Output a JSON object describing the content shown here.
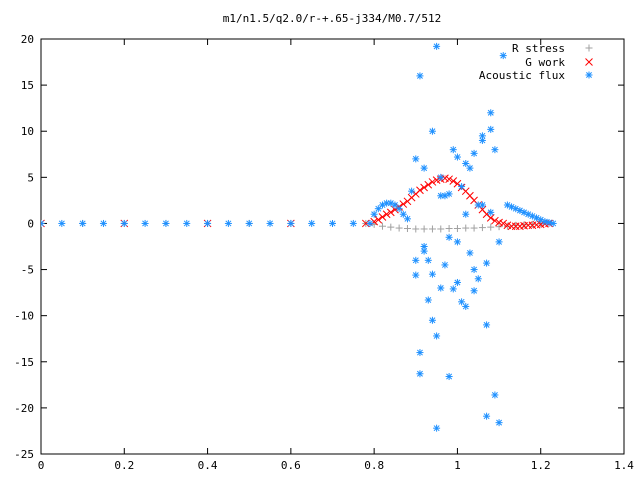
{
  "chart_data": {
    "type": "scatter",
    "title": "m1/n1.5/q2.0/r-+.65-j334/M0.7/512",
    "xlim": [
      0,
      1.4
    ],
    "ylim": [
      -25,
      20
    ],
    "x_ticks": [
      "0",
      "0.2",
      "0.4",
      "0.6",
      "0.8",
      "1",
      "1.2",
      "1.4"
    ],
    "y_ticks": [
      "20",
      "15",
      "10",
      "5",
      "0",
      "-5",
      "-10",
      "-15",
      "-20",
      "-25"
    ],
    "x_tick_values": [
      0,
      0.2,
      0.4,
      0.6,
      0.8,
      1.0,
      1.2,
      1.4
    ],
    "y_tick_values": [
      20,
      15,
      10,
      5,
      0,
      -5,
      -10,
      -15,
      -20,
      -25
    ],
    "grid": false,
    "legend_position": "top-right",
    "series": [
      {
        "name": "R stress",
        "marker": "+",
        "color": "#a0a0a0",
        "x": [
          0.0,
          0.1,
          0.2,
          0.3,
          0.4,
          0.5,
          0.6,
          0.7,
          0.78,
          0.8,
          0.82,
          0.84,
          0.86,
          0.88,
          0.9,
          0.92,
          0.94,
          0.96,
          0.98,
          1.0,
          1.02,
          1.04,
          1.06,
          1.08,
          1.1,
          1.12,
          1.14,
          1.16,
          1.18,
          1.2,
          1.22
        ],
        "y": [
          0,
          0,
          0,
          0,
          0,
          0,
          0,
          0,
          0,
          -0.1,
          -0.3,
          -0.4,
          -0.5,
          -0.55,
          -0.6,
          -0.6,
          -0.6,
          -0.6,
          -0.55,
          -0.55,
          -0.5,
          -0.5,
          -0.45,
          -0.4,
          -0.35,
          -0.3,
          -0.2,
          -0.15,
          -0.1,
          -0.05,
          0
        ]
      },
      {
        "name": "G work",
        "marker": "x",
        "color": "#ff0000",
        "x": [
          0.0,
          0.2,
          0.4,
          0.6,
          0.78,
          0.8,
          0.81,
          0.82,
          0.83,
          0.84,
          0.85,
          0.86,
          0.87,
          0.88,
          0.89,
          0.9,
          0.91,
          0.92,
          0.93,
          0.94,
          0.95,
          0.96,
          0.97,
          0.98,
          0.99,
          1.0,
          1.01,
          1.02,
          1.03,
          1.04,
          1.05,
          1.06,
          1.07,
          1.08,
          1.09,
          1.1,
          1.11,
          1.12,
          1.13,
          1.14,
          1.15,
          1.16,
          1.17,
          1.18,
          1.19,
          1.2,
          1.21,
          1.22
        ],
        "y": [
          0,
          0,
          0,
          0,
          0,
          0.2,
          0.4,
          0.7,
          1.0,
          1.2,
          1.5,
          1.8,
          2.1,
          2.4,
          2.8,
          3.2,
          3.6,
          3.9,
          4.2,
          4.5,
          4.7,
          4.8,
          4.9,
          4.8,
          4.6,
          4.3,
          3.9,
          3.5,
          3.0,
          2.5,
          2.0,
          1.5,
          1.0,
          0.6,
          0.3,
          0.1,
          0,
          -0.2,
          -0.3,
          -0.3,
          -0.3,
          -0.25,
          -0.2,
          -0.2,
          -0.15,
          -0.1,
          -0.05,
          0
        ]
      },
      {
        "name": "Acoustic flux",
        "marker": "*",
        "color": "#1e90ff",
        "x": [
          0.0,
          0.05,
          0.1,
          0.15,
          0.2,
          0.25,
          0.3,
          0.35,
          0.4,
          0.45,
          0.5,
          0.55,
          0.6,
          0.65,
          0.7,
          0.75,
          0.79,
          0.8,
          0.81,
          0.82,
          0.83,
          0.84,
          0.85,
          0.86,
          0.87,
          0.88,
          0.89,
          0.9,
          0.91,
          0.91,
          0.92,
          0.93,
          0.94,
          0.95,
          0.96,
          0.97,
          0.98,
          0.99,
          1.0,
          1.01,
          1.02,
          1.03,
          1.04,
          1.05,
          1.06,
          1.07,
          1.08,
          1.09,
          1.1,
          1.11,
          1.12,
          1.13,
          1.14,
          1.15,
          1.16,
          1.17,
          1.18,
          1.19,
          1.2,
          1.21,
          1.22,
          1.23,
          0.9,
          0.91,
          0.92,
          0.93,
          0.94,
          0.95,
          0.96,
          0.97,
          0.98,
          0.99,
          1.0,
          1.01,
          1.02,
          1.03,
          1.04,
          1.05,
          1.06,
          1.07,
          1.08,
          1.09,
          0.9,
          0.92,
          0.94,
          0.96,
          0.98,
          1.0,
          1.02,
          1.04,
          1.06,
          1.08,
          1.1,
          0.95,
          1.07
        ],
        "y": [
          0,
          0,
          0,
          0,
          0,
          0,
          0,
          0,
          0,
          0,
          0,
          0,
          0,
          0,
          0,
          0,
          0,
          1.0,
          1.6,
          2.0,
          2.2,
          2.2,
          2.0,
          1.6,
          1.0,
          0.5,
          3.5,
          7.0,
          16.0,
          -16.3,
          6.0,
          -4.0,
          10.0,
          19.2,
          -7.0,
          3.0,
          -16.6,
          8.0,
          -2.0,
          4.0,
          -9.0,
          6.0,
          -5.0,
          2.0,
          9.0,
          -11.0,
          12.0,
          8.0,
          -2.0,
          18.2,
          2.0,
          1.8,
          1.6,
          1.4,
          1.2,
          1.0,
          0.8,
          0.6,
          0.4,
          0.2,
          0.1,
          0,
          -5.6,
          -14.0,
          -3.0,
          -8.3,
          -10.5,
          -12.2,
          5.0,
          -4.5,
          3.2,
          -7.1,
          7.2,
          -8.5,
          6.5,
          -3.2,
          7.6,
          -6.0,
          9.5,
          -4.3,
          10.2,
          -18.6,
          -4.0,
          -2.5,
          -5.5,
          3.0,
          -1.5,
          -6.4,
          1.0,
          -7.3,
          2.0,
          1.2,
          -21.6,
          -22.2,
          -20.9
        ]
      }
    ]
  }
}
